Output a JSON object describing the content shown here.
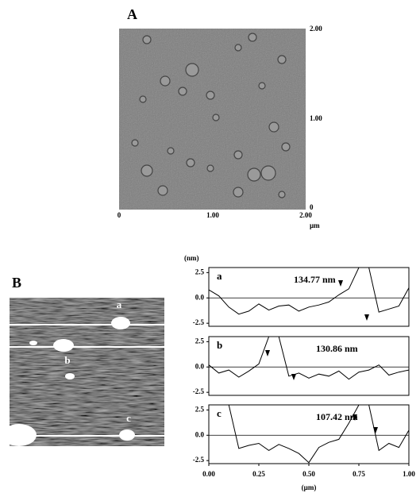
{
  "panel_a": {
    "label": "A",
    "right_tick_labels": [
      "2.00",
      "1.00",
      "0"
    ],
    "bottom_tick_labels": [
      "0",
      "1.00",
      "2.00"
    ],
    "unit": "µm"
  },
  "panel_b": {
    "label": "B",
    "line_labels": [
      "a",
      "b",
      "c"
    ]
  },
  "profiles": {
    "ylabel": "(nm)",
    "xlabel": "(µm)",
    "xlim": [
      0,
      1
    ],
    "ylim": [
      -2.8,
      3
    ],
    "xticks": [
      {
        "value": 0,
        "label": "0.00"
      },
      {
        "value": 0.25,
        "label": "0.25"
      },
      {
        "value": 0.5,
        "label": "0.50"
      },
      {
        "value": 0.75,
        "label": "0.75"
      },
      {
        "value": 1,
        "label": "1.00"
      }
    ],
    "yticks": [
      2.5,
      {
        "value": 0,
        "label": "0.0"
      },
      -2.5
    ],
    "x": [
      0,
      0.05,
      0.1,
      0.15,
      0.2,
      0.25,
      0.3,
      0.35,
      0.4,
      0.45,
      0.5,
      0.55,
      0.6,
      0.65,
      0.7,
      0.75,
      0.8,
      0.85,
      0.9,
      0.95,
      1
    ],
    "panels": [
      {
        "label": "a",
        "annotation": "134.77 nm",
        "values": [
          0.8,
          0.2,
          -0.9,
          -1.6,
          -1.3,
          -0.6,
          -1.2,
          -0.8,
          -0.7,
          -1.3,
          -0.9,
          -0.7,
          -0.4,
          0.3,
          0.9,
          3,
          3,
          -1.4,
          -1.1,
          -0.8,
          1.0
        ]
      },
      {
        "label": "b",
        "annotation": "130.86 nm",
        "values": [
          0.2,
          -0.6,
          -0.3,
          -1.0,
          -0.4,
          0.3,
          3,
          3,
          -0.9,
          -0.6,
          -1.1,
          -0.7,
          -0.9,
          -0.4,
          -1.2,
          -0.5,
          -0.3,
          0.2,
          -0.8,
          -0.5,
          -0.3
        ]
      },
      {
        "label": "c",
        "annotation": "107.42 nm",
        "values": [
          3,
          3,
          3,
          -1.3,
          -1.0,
          -0.8,
          -1.5,
          -0.9,
          -1.3,
          -1.8,
          -2.7,
          -1.2,
          -0.7,
          -0.4,
          1.2,
          3,
          3,
          -1.5,
          -0.8,
          -1.2,
          0.5
        ]
      }
    ]
  }
}
